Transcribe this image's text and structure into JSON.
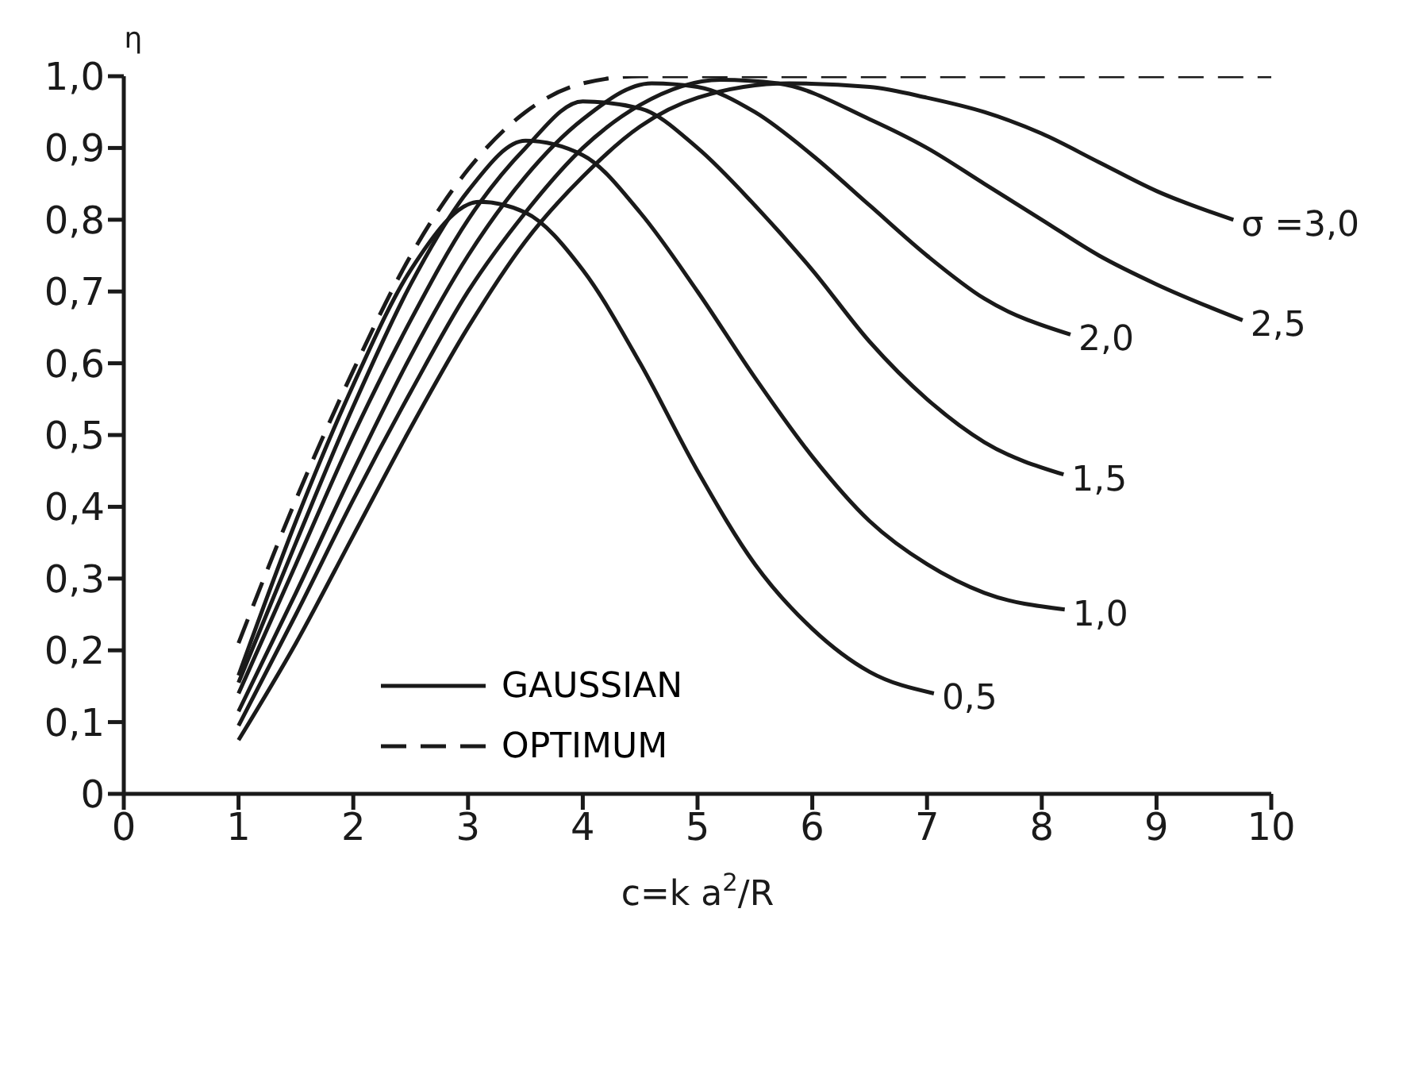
{
  "chart_data": {
    "type": "line",
    "xlabel": "c=k a$^{2}$/R",
    "ylabel": "η",
    "xlim": [
      0,
      10
    ],
    "xticks": [
      0,
      1,
      2,
      3,
      4,
      5,
      6,
      7,
      8,
      9,
      10
    ],
    "ylim": [
      0,
      1.0
    ],
    "yticks": [
      0,
      {
        "value": 0.1,
        "label": "0,1"
      },
      {
        "value": 0.2,
        "label": "0,2"
      },
      {
        "value": 0.3,
        "label": "0,3"
      },
      {
        "value": 0.4,
        "label": "0,4"
      },
      {
        "value": 0.5,
        "label": "0,5"
      },
      {
        "value": 0.6,
        "label": "0,6"
      },
      {
        "value": 0.7,
        "label": "0,7"
      },
      {
        "value": 0.8,
        "label": "0,8"
      },
      {
        "value": 0.9,
        "label": "0,9"
      },
      {
        "value": 1.0,
        "label": "1,0"
      }
    ],
    "grid": false,
    "legend": "bottom left",
    "marker": "none",
    "annotations": [
      "GAUSSIAN"
    ],
    "series": [
      {
        "name": "0,5",
        "color": "#1a1a1a",
        "line_style": "solid",
        "x": [
          1,
          1.5,
          2,
          2.5,
          3.1,
          3.5,
          4,
          4.5,
          5,
          5.5,
          6,
          6.5,
          7.06
        ],
        "values": [
          0.165,
          0.38,
          0.57,
          0.73,
          0.825,
          0.81,
          0.73,
          0.6,
          0.45,
          0.32,
          0.23,
          0.17,
          0.14
        ]
      },
      {
        "name": "1,0",
        "color": "#1a1a1a",
        "line_style": "solid",
        "x": [
          1,
          1.5,
          2,
          2.5,
          3,
          3.5,
          4,
          4.5,
          5,
          5.5,
          6,
          6.5,
          7,
          7.5,
          8.2
        ],
        "values": [
          0.155,
          0.35,
          0.54,
          0.71,
          0.84,
          0.91,
          0.89,
          0.81,
          0.7,
          0.58,
          0.47,
          0.38,
          0.32,
          0.28,
          0.257
        ]
      },
      {
        "name": "1,5",
        "color": "#1a1a1a",
        "line_style": "solid",
        "x": [
          1,
          1.5,
          2,
          2.5,
          3,
          3.5,
          4,
          4.5,
          5,
          5.5,
          6,
          6.5,
          7,
          7.5,
          8.19
        ],
        "values": [
          0.14,
          0.32,
          0.5,
          0.66,
          0.8,
          0.9,
          0.965,
          0.955,
          0.9,
          0.82,
          0.73,
          0.63,
          0.55,
          0.49,
          0.445
        ]
      },
      {
        "name": "2,0",
        "color": "#1a1a1a",
        "line_style": "solid",
        "x": [
          1,
          1.5,
          2,
          2.5,
          3,
          3.5,
          4,
          4.6,
          5,
          5.5,
          6,
          6.5,
          7,
          7.5,
          8.25
        ],
        "values": [
          0.115,
          0.28,
          0.45,
          0.61,
          0.75,
          0.86,
          0.94,
          0.99,
          0.985,
          0.95,
          0.89,
          0.82,
          0.75,
          0.69,
          0.64
        ]
      },
      {
        "name": "2,5",
        "color": "#1a1a1a",
        "line_style": "solid",
        "x": [
          1,
          1.5,
          2,
          2.5,
          3,
          3.5,
          4,
          4.5,
          5.2,
          5.7,
          6.5,
          7,
          7.5,
          8,
          8.5,
          9,
          9.75
        ],
        "values": [
          0.095,
          0.25,
          0.41,
          0.56,
          0.7,
          0.81,
          0.9,
          0.96,
          0.995,
          0.99,
          0.94,
          0.9,
          0.85,
          0.8,
          0.75,
          0.71,
          0.66
        ]
      },
      {
        "name": "σ =3,0",
        "color": "#1a1a1a",
        "line_style": "solid",
        "x": [
          1,
          1.5,
          2,
          2.5,
          3,
          3.5,
          4,
          4.5,
          5,
          5.8,
          6.5,
          7,
          7.5,
          8,
          8.5,
          9,
          9.67
        ],
        "values": [
          0.075,
          0.21,
          0.36,
          0.51,
          0.65,
          0.77,
          0.86,
          0.93,
          0.97,
          0.99,
          0.985,
          0.97,
          0.95,
          0.92,
          0.88,
          0.84,
          0.8
        ]
      },
      {
        "name": "OPTIMUM",
        "color": "#1a1a1a",
        "line_style": "dashed",
        "x": [
          1,
          1.5,
          2,
          2.5,
          3,
          3.5,
          4,
          4.5,
          10
        ],
        "values": [
          0.21,
          0.41,
          0.59,
          0.75,
          0.87,
          0.95,
          0.99,
          1.0,
          1.0
        ]
      }
    ]
  }
}
